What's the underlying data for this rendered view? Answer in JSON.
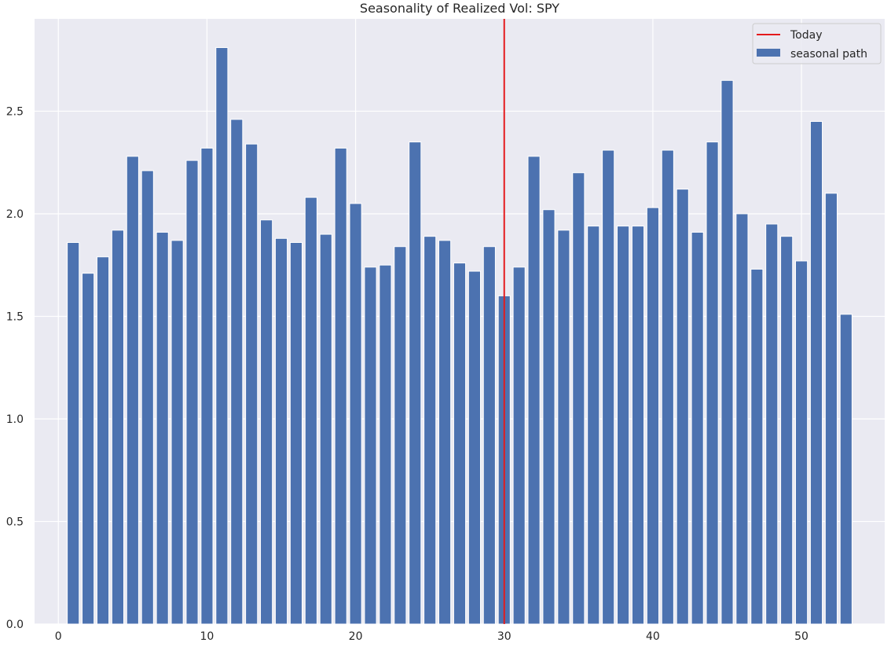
{
  "chart_data": {
    "type": "bar",
    "title": "Seasonality of Realized Vol: SPY",
    "xlabel": "",
    "ylabel": "",
    "xlim": [
      -1.6,
      55.6
    ],
    "ylim": [
      0,
      2.95
    ],
    "x_ticks": [
      0,
      10,
      20,
      30,
      40,
      50
    ],
    "y_ticks": [
      0.0,
      0.5,
      1.0,
      1.5,
      2.0,
      2.5
    ],
    "x_tick_labels": [
      "0",
      "10",
      "20",
      "30",
      "40",
      "50"
    ],
    "y_tick_labels": [
      "0.0",
      "0.5",
      "1.0",
      "1.5",
      "2.0",
      "2.5"
    ],
    "grid": true,
    "legend_position": "top-right",
    "x": [
      1,
      2,
      3,
      4,
      5,
      6,
      7,
      8,
      9,
      10,
      11,
      12,
      13,
      14,
      15,
      16,
      17,
      18,
      19,
      20,
      21,
      22,
      23,
      24,
      25,
      26,
      27,
      28,
      29,
      30,
      31,
      32,
      33,
      34,
      35,
      36,
      37,
      38,
      39,
      40,
      41,
      42,
      43,
      44,
      45,
      46,
      47,
      48,
      49,
      50,
      51,
      52,
      53
    ],
    "series": [
      {
        "name": "seasonal path",
        "color": "#4c72b0",
        "values": [
          1.86,
          1.71,
          1.79,
          1.92,
          2.28,
          2.21,
          1.91,
          1.87,
          2.26,
          2.32,
          2.81,
          2.46,
          2.34,
          1.97,
          1.88,
          1.86,
          2.08,
          1.9,
          2.32,
          2.05,
          1.74,
          1.75,
          1.84,
          2.35,
          1.89,
          1.87,
          1.76,
          1.72,
          1.84,
          1.6,
          1.74,
          2.28,
          2.02,
          1.92,
          2.2,
          1.94,
          2.31,
          1.94,
          1.94,
          2.03,
          2.31,
          2.12,
          1.91,
          2.35,
          2.65,
          2.0,
          1.73,
          1.95,
          1.89,
          1.77,
          2.45,
          2.1,
          1.51
        ]
      }
    ],
    "vertical_lines": [
      {
        "name": "Today",
        "x": 30,
        "color": "#e41a1c"
      }
    ],
    "legend": [
      {
        "label": "Today",
        "kind": "line",
        "color": "#e41a1c"
      },
      {
        "label": "seasonal path",
        "kind": "patch",
        "color": "#4c72b0"
      }
    ]
  }
}
